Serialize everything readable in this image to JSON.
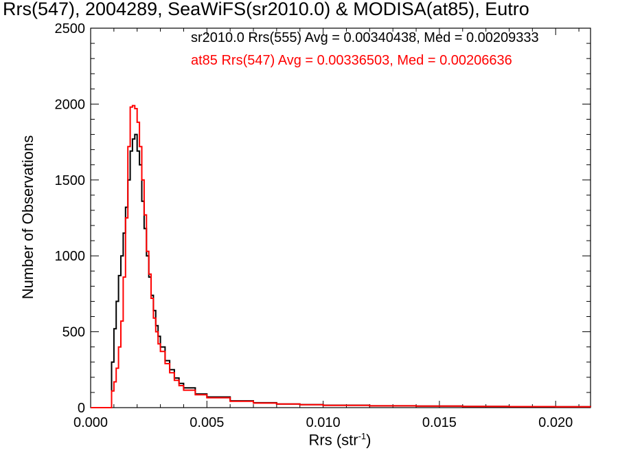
{
  "chart_data": {
    "type": "line",
    "step": true,
    "title": "Rrs(547), 2004289, SeaWiFS(sr2010.0) & MODISA(at85), Eutro",
    "xlabel_main": "Rrs (str",
    "xlabel_sup": "-1",
    "xlabel_close": ")",
    "ylabel": "Number of Observations",
    "xlim": [
      0.0,
      0.0215
    ],
    "ylim": [
      0,
      2500
    ],
    "x_ticks": [
      {
        "value": 0.0,
        "label": "0.000"
      },
      {
        "value": 0.005,
        "label": "0.005"
      },
      {
        "value": 0.01,
        "label": "0.010"
      },
      {
        "value": 0.015,
        "label": "0.015"
      },
      {
        "value": 0.02,
        "label": "0.020"
      }
    ],
    "y_ticks": [
      {
        "value": 0,
        "label": "0"
      },
      {
        "value": 500,
        "label": "500"
      },
      {
        "value": 1000,
        "label": "1000"
      },
      {
        "value": 1500,
        "label": "1500"
      },
      {
        "value": 2000,
        "label": "2000"
      },
      {
        "value": 2500,
        "label": "2500"
      }
    ],
    "grid": false,
    "series": [
      {
        "name": "sr2010.0 Rrs(555) Avg = 0.00340438, Med = 0.00209333",
        "color": "#000000",
        "points": [
          [
            0.0,
            0
          ],
          [
            0.0008,
            0
          ],
          [
            0.0009,
            300
          ],
          [
            0.001,
            520
          ],
          [
            0.0011,
            700
          ],
          [
            0.0012,
            870
          ],
          [
            0.0013,
            1000
          ],
          [
            0.0014,
            1150
          ],
          [
            0.0015,
            1320
          ],
          [
            0.0016,
            1500
          ],
          [
            0.0017,
            1690
          ],
          [
            0.0018,
            1770
          ],
          [
            0.0019,
            1800
          ],
          [
            0.002,
            1690
          ],
          [
            0.0021,
            1600
          ],
          [
            0.0022,
            1360
          ],
          [
            0.0023,
            1180
          ],
          [
            0.0024,
            1000
          ],
          [
            0.0025,
            860
          ],
          [
            0.0026,
            740
          ],
          [
            0.0027,
            640
          ],
          [
            0.0028,
            540
          ],
          [
            0.0029,
            470
          ],
          [
            0.003,
            400
          ],
          [
            0.0032,
            310
          ],
          [
            0.0034,
            250
          ],
          [
            0.0036,
            195
          ],
          [
            0.0038,
            160
          ],
          [
            0.004,
            130
          ],
          [
            0.0045,
            90
          ],
          [
            0.005,
            70
          ],
          [
            0.006,
            45
          ],
          [
            0.007,
            32
          ],
          [
            0.008,
            24
          ],
          [
            0.009,
            20
          ],
          [
            0.01,
            16
          ],
          [
            0.012,
            12
          ],
          [
            0.014,
            10
          ],
          [
            0.016,
            8
          ],
          [
            0.018,
            7
          ],
          [
            0.02,
            6
          ],
          [
            0.0215,
            5
          ]
        ]
      },
      {
        "name": "at85 Rrs(547) Avg = 0.00336503, Med = 0.00206636",
        "color": "#ff0000",
        "points": [
          [
            0.0,
            0
          ],
          [
            0.0008,
            0
          ],
          [
            0.0009,
            110
          ],
          [
            0.001,
            170
          ],
          [
            0.0011,
            260
          ],
          [
            0.0012,
            400
          ],
          [
            0.0013,
            570
          ],
          [
            0.0014,
            860
          ],
          [
            0.0015,
            1250
          ],
          [
            0.0016,
            1720
          ],
          [
            0.0017,
            1980
          ],
          [
            0.0018,
            1990
          ],
          [
            0.0019,
            1970
          ],
          [
            0.002,
            1880
          ],
          [
            0.0021,
            1720
          ],
          [
            0.0022,
            1500
          ],
          [
            0.0023,
            1270
          ],
          [
            0.0024,
            1030
          ],
          [
            0.0025,
            880
          ],
          [
            0.0026,
            720
          ],
          [
            0.0027,
            590
          ],
          [
            0.0028,
            500
          ],
          [
            0.0029,
            420
          ],
          [
            0.003,
            370
          ],
          [
            0.0032,
            290
          ],
          [
            0.0034,
            230
          ],
          [
            0.0036,
            180
          ],
          [
            0.0038,
            145
          ],
          [
            0.004,
            115
          ],
          [
            0.0045,
            85
          ],
          [
            0.005,
            65
          ],
          [
            0.006,
            42
          ],
          [
            0.007,
            30
          ],
          [
            0.008,
            24
          ],
          [
            0.009,
            19
          ],
          [
            0.01,
            15
          ],
          [
            0.012,
            12
          ],
          [
            0.014,
            10
          ],
          [
            0.016,
            8
          ],
          [
            0.018,
            7
          ],
          [
            0.02,
            6
          ],
          [
            0.0215,
            5
          ]
        ]
      }
    ]
  }
}
